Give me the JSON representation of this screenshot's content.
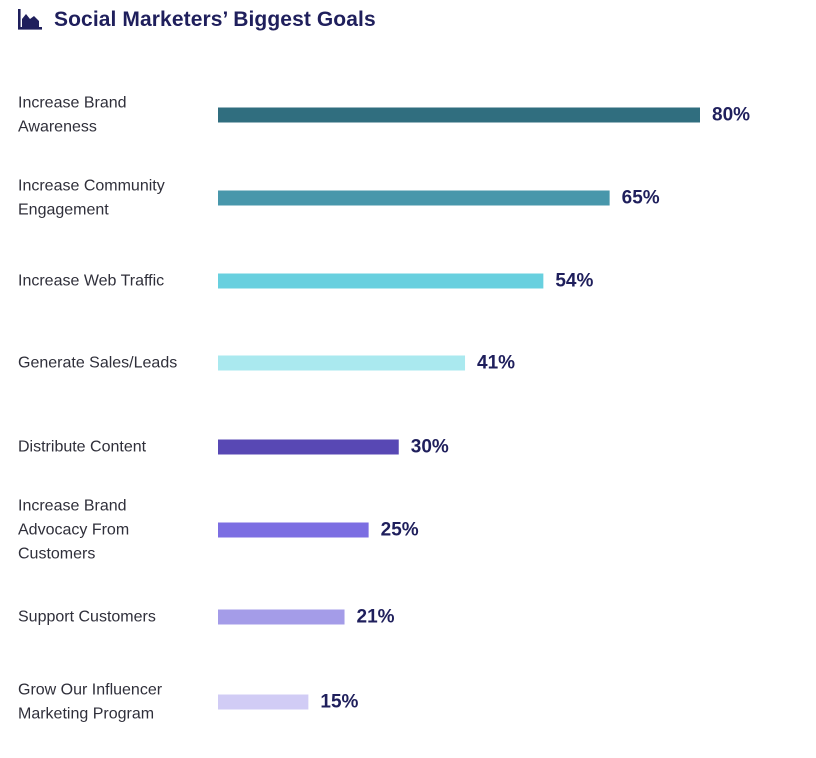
{
  "header": {
    "title": "Social Marketers’ Biggest Goals",
    "icon": "area-chart-icon"
  },
  "chart_data": {
    "type": "bar",
    "orientation": "horizontal",
    "title": "Social Marketers’ Biggest Goals",
    "categories": [
      [
        "Increase Brand",
        "Awareness"
      ],
      [
        "Increase Community",
        "Engagement"
      ],
      [
        "Increase Web Traffic"
      ],
      [
        "Generate Sales/Leads"
      ],
      [
        "Distribute Content"
      ],
      [
        "Increase Brand",
        "Advocacy From",
        "Customers"
      ],
      [
        "Support Customers"
      ],
      [
        "Grow Our Influencer",
        "Marketing Program"
      ]
    ],
    "values": [
      80,
      65,
      54,
      41,
      30,
      25,
      21,
      15
    ],
    "value_labels": [
      "80%",
      "65%",
      "54%",
      "41%",
      "30%",
      "25%",
      "21%",
      "15%"
    ],
    "colors": [
      "#306e7f",
      "#4897ab",
      "#68d0df",
      "#aae9ef",
      "#5848b4",
      "#7c6ee2",
      "#a49ce8",
      "#d1ccf5"
    ],
    "xlim": [
      0,
      80
    ],
    "grid": false,
    "legend": "none",
    "xlabel": "",
    "ylabel": ""
  }
}
